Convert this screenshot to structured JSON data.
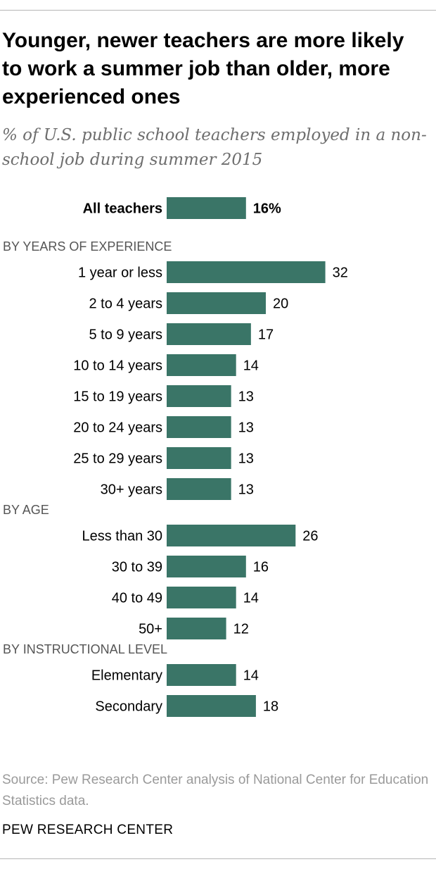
{
  "colors": {
    "bar": "#3a7567",
    "text": "#000000",
    "section": "#555555"
  },
  "chart_data": {
    "type": "bar",
    "orientation": "horizontal",
    "title": "Younger, newer teachers are more likely to work a summer job than older, more experienced ones",
    "subtitle": "% of U.S. public school teachers employed in a non-school job during summer 2015",
    "total": {
      "label": "All teachers",
      "value": 16,
      "value_label": "16%"
    },
    "groups": [
      {
        "heading": "BY YEARS OF EXPERIENCE",
        "categories": [
          "1 year or less",
          "2 to 4 years",
          "5 to 9 years",
          "10 to 14 years",
          "15 to 19 years",
          "20 to 24 years",
          "25 to 29 years",
          "30+ years"
        ],
        "values": [
          32,
          20,
          17,
          14,
          13,
          13,
          13,
          13
        ]
      },
      {
        "heading": "BY AGE",
        "categories": [
          "Less than 30",
          "30 to 39",
          "40 to 49",
          "50+"
        ],
        "values": [
          26,
          16,
          14,
          12
        ]
      },
      {
        "heading": "BY INSTRUCTIONAL LEVEL",
        "categories": [
          "Elementary",
          "Secondary"
        ],
        "values": [
          14,
          18
        ]
      }
    ]
  },
  "footer": {
    "source": "Source: Pew Research Center analysis of National Center for Education Statistics data.",
    "brand": "PEW RESEARCH CENTER"
  }
}
